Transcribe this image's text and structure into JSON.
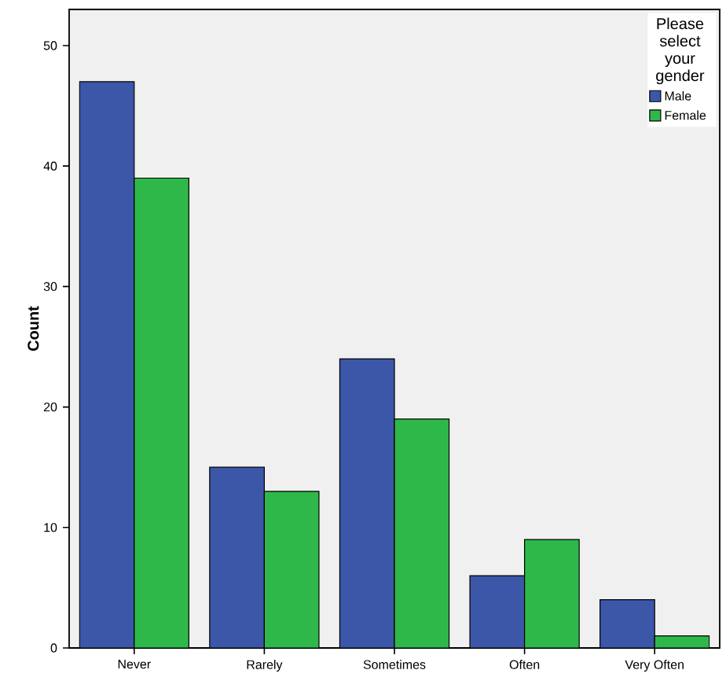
{
  "chart_data": {
    "type": "bar",
    "ylabel": "Count",
    "legend_title": "Please select your gender",
    "categories": [
      "Never",
      "Rarely",
      "Sometimes",
      "Often",
      "Very Often"
    ],
    "series": [
      {
        "name": "Male",
        "color": "#3c56a8",
        "values": [
          47,
          15,
          24,
          6,
          4
        ]
      },
      {
        "name": "Female",
        "color": "#2fb84a",
        "values": [
          39,
          13,
          19,
          9,
          1
        ]
      }
    ],
    "ylim": [
      0,
      53
    ],
    "yticks": [
      0,
      10,
      20,
      30,
      40,
      50
    ],
    "grid": false,
    "legend": "top right"
  }
}
